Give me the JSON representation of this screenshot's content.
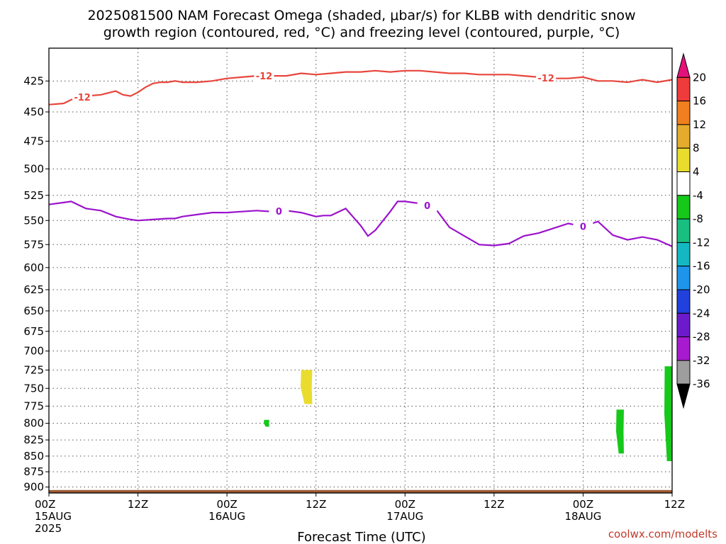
{
  "title": {
    "line1": "2025081500 NAM Forecast Omega (shaded, μbar/s) for KLBB with dendritic snow",
    "line2": "growth region (contoured, red, °C) and freezing level (contoured, purple, °C)"
  },
  "credit": "coolwx.com/modelts",
  "colors": {
    "dendritic": "#e8463c",
    "freezing": "#9b12cc",
    "terrain": "#9c5a36",
    "grid": "#555555"
  },
  "chart_data": {
    "type": "time-height",
    "title": "2025081500 NAM Forecast Omega (shaded, μbar/s) for KLBB with dendritic snow growth region (contoured, red, °C) and freezing level (contoured, purple, °C)",
    "xlabel": "Forecast Time (UTC)",
    "ylabel": "",
    "x_range_hours": [
      0,
      84
    ],
    "y_range_hPa": [
      400,
      910
    ],
    "y_scale": "log-pressure (inverted)",
    "grid": true,
    "y_ticks": [
      425,
      450,
      475,
      500,
      525,
      550,
      575,
      600,
      625,
      650,
      675,
      700,
      725,
      750,
      775,
      800,
      825,
      850,
      875,
      900
    ],
    "x_ticks": [
      {
        "hour": 0,
        "line1": "00Z",
        "line2": "15AUG",
        "line3": "2025"
      },
      {
        "hour": 12,
        "line1": "12Z",
        "line2": "",
        "line3": ""
      },
      {
        "hour": 24,
        "line1": "00Z",
        "line2": "16AUG",
        "line3": ""
      },
      {
        "hour": 36,
        "line1": "12Z",
        "line2": "",
        "line3": ""
      },
      {
        "hour": 48,
        "line1": "00Z",
        "line2": "17AUG",
        "line3": ""
      },
      {
        "hour": 60,
        "line1": "12Z",
        "line2": "",
        "line3": ""
      },
      {
        "hour": 72,
        "line1": "00Z",
        "line2": "18AUG",
        "line3": ""
      },
      {
        "hour": 84,
        "line1": "12Z",
        "line2": "",
        "line3": ""
      }
    ],
    "series": [
      {
        "name": "-12",
        "kind": "dendritic growth contour",
        "labels_at_hours": [
          4.5,
          29,
          67
        ],
        "x": [
          0,
          2,
          3,
          5,
          7,
          9,
          10,
          11,
          12,
          13,
          14,
          15,
          16,
          17,
          18,
          20,
          22,
          24,
          26,
          28,
          30,
          32,
          34,
          36,
          38,
          40,
          42,
          44,
          46,
          48,
          50,
          52,
          54,
          56,
          58,
          60,
          62,
          64,
          66,
          68,
          70,
          72,
          74,
          76,
          78,
          80,
          82,
          84
        ],
        "y": [
          444,
          443,
          440,
          437,
          436,
          433,
          436,
          437,
          434,
          430,
          427,
          426,
          426,
          425,
          426,
          426,
          425,
          423,
          422,
          421,
          421,
          421,
          419,
          420,
          419,
          418,
          418,
          417,
          418,
          417,
          417,
          418,
          419,
          419,
          420,
          420,
          420,
          421,
          422,
          423,
          423,
          422,
          425,
          425,
          426,
          424,
          426,
          424
        ]
      },
      {
        "name": "0",
        "kind": "freezing level contour",
        "labels_at_hours": [
          31,
          51,
          72
        ],
        "x": [
          0,
          2,
          3,
          5,
          7,
          9,
          11,
          12,
          14,
          16,
          17,
          18,
          20,
          22,
          24,
          26,
          28,
          30,
          32,
          34,
          36,
          37,
          38,
          40,
          42,
          43,
          44,
          46,
          47,
          48,
          50,
          52,
          54,
          56,
          58,
          60,
          62,
          64,
          66,
          68,
          70,
          72,
          74,
          76,
          78,
          80,
          82,
          84
        ],
        "y": [
          534,
          532,
          531,
          538,
          540,
          546,
          549,
          550,
          549,
          548,
          548,
          546,
          544,
          542,
          542,
          541,
          540,
          541,
          540,
          542,
          546,
          545,
          545,
          538,
          555,
          566,
          560,
          541,
          531,
          531,
          533,
          537,
          557,
          566,
          575,
          576,
          574,
          566,
          563,
          558,
          553,
          556,
          551,
          565,
          570,
          567,
          570,
          577
        ]
      }
    ],
    "omega_shaded_regions": [
      {
        "value_range": [
          4,
          8
        ],
        "hours": [
          34.0,
          35.5
        ],
        "pressure_hPa": [
          725,
          772
        ]
      },
      {
        "value_range": [
          -8,
          -4
        ],
        "hours": [
          29.0,
          29.7
        ],
        "pressure_hPa": [
          795,
          805
        ]
      },
      {
        "value_range": [
          -8,
          -4
        ],
        "hours": [
          76.5,
          77.5
        ],
        "pressure_hPa": [
          780,
          846
        ]
      },
      {
        "value_range": [
          -8,
          -4
        ],
        "hours": [
          83.0,
          84.0
        ],
        "pressure_hPa": [
          720,
          858
        ]
      }
    ],
    "terrain_surface_hPa": 905,
    "colorbar": {
      "ticks": [
        20,
        16,
        12,
        8,
        4,
        -4,
        -8,
        -12,
        -16,
        -20,
        -24,
        -28,
        -32,
        -36
      ],
      "colors": [
        "#e3127a",
        "#ef3b3b",
        "#f07f1f",
        "#e4ab2c",
        "#e9dc2e",
        "#ffffff",
        "#16c81a",
        "#18bf80",
        "#14b8c2",
        "#1e95ea",
        "#2240dc",
        "#6b1bcc",
        "#a81ad0",
        "#9e9e9e",
        "#000000"
      ]
    }
  }
}
